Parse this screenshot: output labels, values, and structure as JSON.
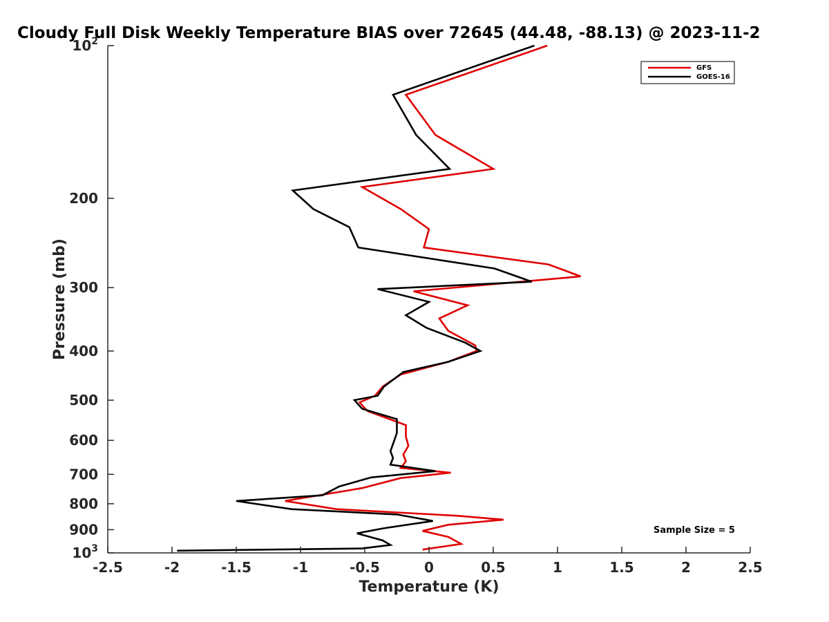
{
  "chart_data": {
    "type": "line",
    "title": "Cloudy Full Disk Weekly Temperature BIAS over 72645 (44.48, -88.13) @ 2023-11-2",
    "xlabel": "Temperature (K)",
    "ylabel": "Pressure (mb)",
    "xlim": [
      -2.5,
      2.5
    ],
    "ylim": [
      100,
      1000
    ],
    "y_scale": "log",
    "y_reversed": true,
    "grid": false,
    "legend_position": "top-right",
    "x_ticks": [
      "-2.5",
      "-2",
      "-1.5",
      "-1",
      "-0.5",
      "0",
      "0.5",
      "1",
      "1.5",
      "2",
      "2.5"
    ],
    "x_tick_values": [
      -2.5,
      -2,
      -1.5,
      -1,
      -0.5,
      0,
      0.5,
      1,
      1.5,
      2,
      2.5
    ],
    "y_ticks": [
      {
        "value": 200,
        "label": "200"
      },
      {
        "value": 300,
        "label": "300"
      },
      {
        "value": 400,
        "label": "400"
      },
      {
        "value": 500,
        "label": "500"
      },
      {
        "value": 600,
        "label": "600"
      },
      {
        "value": 700,
        "label": "700"
      },
      {
        "value": 800,
        "label": "800"
      },
      {
        "value": 900,
        "label": "900"
      }
    ],
    "y_tick_pow_base": "10",
    "y_tick_pow_top": "2",
    "y_tick_pow_bottom": "3",
    "annotation": "Sample Size = 5",
    "series": [
      {
        "name": "GFS",
        "color": "#e00000",
        "points": [
          [
            0.92,
            100
          ],
          [
            -0.18,
            125
          ],
          [
            0.05,
            150
          ],
          [
            0.5,
            175
          ],
          [
            -0.52,
            190
          ],
          [
            -0.22,
            210
          ],
          [
            0.0,
            230
          ],
          [
            -0.04,
            250
          ],
          [
            0.93,
            270
          ],
          [
            1.18,
            285
          ],
          [
            -0.12,
            305
          ],
          [
            0.3,
            325
          ],
          [
            0.08,
            345
          ],
          [
            0.15,
            365
          ],
          [
            0.36,
            390
          ],
          [
            0.37,
            400
          ],
          [
            0.15,
            420
          ],
          [
            -0.22,
            445
          ],
          [
            -0.36,
            470
          ],
          [
            -0.42,
            490
          ],
          [
            -0.54,
            505
          ],
          [
            -0.48,
            525
          ],
          [
            -0.18,
            560
          ],
          [
            -0.18,
            590
          ],
          [
            -0.16,
            615
          ],
          [
            -0.2,
            640
          ],
          [
            -0.18,
            660
          ],
          [
            -0.22,
            680
          ],
          [
            0.17,
            695
          ],
          [
            -0.22,
            712
          ],
          [
            -0.52,
            745
          ],
          [
            -1.12,
            790
          ],
          [
            -0.72,
            820
          ],
          [
            0.22,
            845
          ],
          [
            0.58,
            860
          ],
          [
            0.15,
            880
          ],
          [
            -0.05,
            905
          ],
          [
            0.15,
            930
          ],
          [
            0.25,
            960
          ],
          [
            -0.05,
            985
          ]
        ]
      },
      {
        "name": "GOES-16",
        "color": "#000000",
        "points": [
          [
            0.82,
            100
          ],
          [
            -0.28,
            125
          ],
          [
            -0.1,
            150
          ],
          [
            0.16,
            175
          ],
          [
            -1.06,
            193
          ],
          [
            -0.9,
            210
          ],
          [
            -0.62,
            228
          ],
          [
            -0.55,
            250
          ],
          [
            0.51,
            275
          ],
          [
            0.8,
            292
          ],
          [
            -0.4,
            302
          ],
          [
            0.0,
            320
          ],
          [
            -0.18,
            340
          ],
          [
            -0.02,
            360
          ],
          [
            0.28,
            385
          ],
          [
            0.4,
            400
          ],
          [
            0.15,
            420
          ],
          [
            -0.2,
            440
          ],
          [
            -0.35,
            470
          ],
          [
            -0.4,
            490
          ],
          [
            -0.58,
            500
          ],
          [
            -0.52,
            520
          ],
          [
            -0.25,
            545
          ],
          [
            -0.25,
            580
          ],
          [
            -0.28,
            610
          ],
          [
            -0.3,
            630
          ],
          [
            -0.28,
            650
          ],
          [
            -0.3,
            670
          ],
          [
            0.05,
            690
          ],
          [
            -0.45,
            710
          ],
          [
            -0.7,
            740
          ],
          [
            -0.83,
            770
          ],
          [
            -1.5,
            790
          ],
          [
            -1.07,
            820
          ],
          [
            -0.25,
            840
          ],
          [
            0.03,
            865
          ],
          [
            -0.36,
            895
          ],
          [
            -0.56,
            915
          ],
          [
            -0.36,
            945
          ],
          [
            -0.3,
            965
          ],
          [
            -0.52,
            980
          ],
          [
            -1.96,
            990
          ]
        ]
      }
    ]
  }
}
